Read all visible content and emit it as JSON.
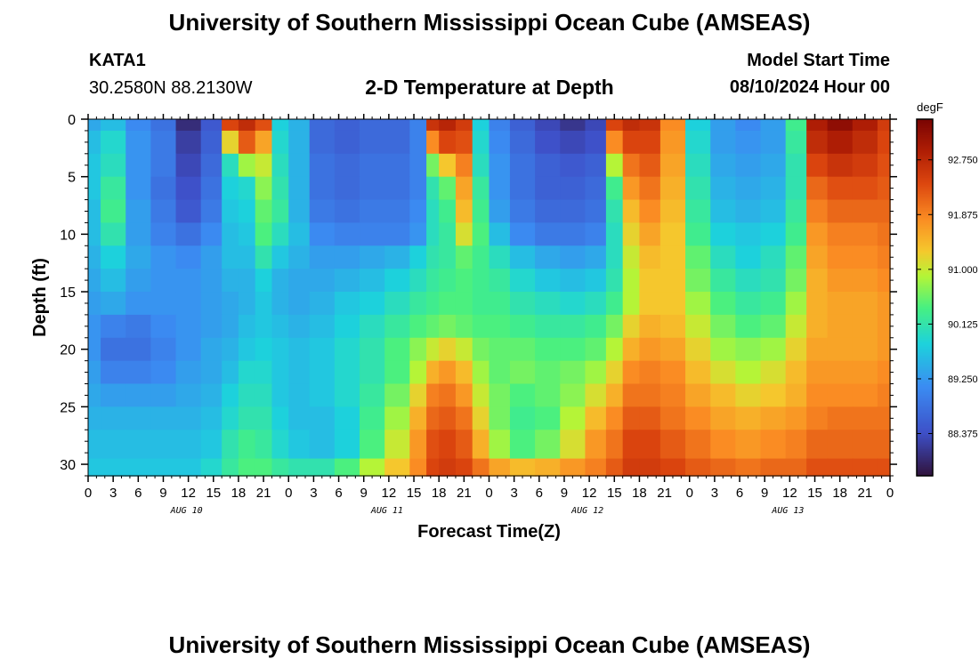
{
  "page": {
    "title": "University of Southern Mississippi Ocean Cube (AMSEAS)",
    "title_repeat": "University of Southern Mississippi Ocean Cube (AMSEAS)",
    "station": "KATA1",
    "coords": "30.2580N  88.2130W",
    "subtitle": "2-D Temperature at Depth",
    "model_start_label": "Model Start Time",
    "model_start_value": "08/10/2024 Hour 00"
  },
  "chart_data": {
    "type": "heatmap",
    "xlabel": "Forecast Time(Z)",
    "ylabel": "Depth (ft)",
    "x_hours_range": [
      0,
      96
    ],
    "x_tick_step_hours": 3,
    "x_tick_labels": [
      "0",
      "3",
      "6",
      "9",
      "12",
      "15",
      "18",
      "21",
      "0",
      "3",
      "6",
      "9",
      "12",
      "15",
      "18",
      "21",
      "0",
      "3",
      "6",
      "9",
      "12",
      "15",
      "18",
      "21",
      "0",
      "3",
      "6",
      "9",
      "12",
      "15",
      "18",
      "21",
      "0"
    ],
    "day_labels": [
      "AUG 10",
      "AUG 11",
      "AUG 12",
      "AUG 13"
    ],
    "y_range": [
      0,
      31
    ],
    "y_ticks": [
      0,
      5,
      10,
      15,
      20,
      25,
      30
    ],
    "y_reversed": true,
    "colorbar": {
      "unit": "degF",
      "range": [
        87.7,
        93.4
      ],
      "ticks": [
        "92.750",
        "91.875",
        "91.000",
        "90.125",
        "89.250",
        "88.375"
      ],
      "tick_values": [
        92.75,
        91.875,
        91.0,
        90.125,
        89.25,
        88.375
      ]
    },
    "depths": [
      0,
      2,
      4,
      6,
      8,
      10,
      12,
      14,
      16,
      18,
      20,
      22,
      24,
      26,
      28,
      31
    ],
    "time_hours": [
      0,
      3,
      6,
      9,
      12,
      15,
      17,
      19,
      21,
      23,
      25,
      28,
      31,
      34,
      37,
      40,
      41,
      43,
      45,
      47,
      49,
      52,
      55,
      58,
      61,
      63,
      65,
      67,
      70,
      73,
      76,
      79,
      82,
      85,
      87,
      90,
      93,
      96
    ],
    "temperature_degF": [
      [
        89.4,
        89.6,
        89.1,
        88.8,
        88.0,
        88.5,
        92.4,
        92.7,
        92.3,
        89.8,
        89.5,
        88.7,
        88.6,
        88.7,
        88.7,
        89.0,
        92.6,
        92.8,
        92.5,
        89.8,
        89.0,
        88.6,
        88.3,
        88.1,
        88.3,
        92.4,
        92.7,
        92.6,
        91.8,
        89.8,
        89.3,
        89.1,
        89.3,
        90.3,
        92.9,
        93.2,
        92.9,
        92.5
      ],
      [
        89.6,
        89.9,
        89.2,
        88.9,
        88.2,
        88.6,
        91.2,
        92.2,
        91.6,
        89.9,
        89.5,
        88.7,
        88.6,
        88.7,
        88.7,
        89.0,
        91.8,
        92.4,
        92.3,
        89.9,
        89.1,
        88.7,
        88.4,
        88.3,
        88.4,
        91.8,
        92.4,
        92.4,
        91.7,
        89.9,
        89.3,
        89.2,
        89.3,
        90.2,
        92.7,
        92.9,
        92.7,
        92.4
      ],
      [
        89.7,
        90.0,
        89.2,
        88.9,
        88.3,
        88.7,
        90.0,
        90.8,
        91.0,
        90.0,
        89.5,
        88.8,
        88.7,
        88.8,
        88.8,
        89.0,
        90.6,
        91.3,
        91.9,
        90.0,
        89.2,
        88.8,
        88.6,
        88.5,
        88.6,
        90.9,
        92.0,
        92.2,
        91.6,
        90.0,
        89.4,
        89.3,
        89.4,
        90.1,
        92.4,
        92.6,
        92.5,
        92.3
      ],
      [
        89.7,
        90.2,
        89.2,
        88.8,
        88.4,
        88.8,
        89.8,
        89.9,
        90.7,
        90.1,
        89.5,
        88.8,
        88.7,
        88.8,
        88.8,
        89.0,
        90.1,
        90.5,
        91.6,
        90.2,
        89.2,
        88.8,
        88.6,
        88.6,
        88.7,
        90.3,
        91.7,
        92.0,
        91.5,
        90.1,
        89.5,
        89.4,
        89.5,
        90.1,
        92.1,
        92.3,
        92.3,
        92.2
      ],
      [
        89.6,
        90.3,
        89.3,
        88.9,
        88.5,
        88.9,
        89.7,
        89.8,
        90.5,
        90.2,
        89.5,
        88.9,
        88.8,
        88.9,
        88.9,
        89.1,
        90.0,
        90.3,
        91.4,
        90.3,
        89.3,
        88.9,
        88.7,
        88.7,
        88.8,
        90.1,
        91.4,
        91.8,
        91.4,
        90.2,
        89.6,
        89.5,
        89.6,
        90.2,
        91.9,
        92.1,
        92.1,
        92.1
      ],
      [
        89.6,
        90.1,
        89.3,
        89.0,
        88.8,
        89.1,
        89.6,
        89.7,
        90.4,
        90.0,
        89.6,
        89.1,
        89.0,
        89.0,
        89.0,
        89.2,
        90.0,
        90.2,
        91.1,
        90.4,
        89.6,
        89.1,
        88.9,
        88.9,
        89.0,
        90.0,
        91.2,
        91.6,
        91.3,
        90.3,
        89.8,
        89.7,
        89.8,
        90.3,
        91.7,
        91.9,
        91.9,
        92.0
      ],
      [
        89.5,
        89.8,
        89.4,
        89.2,
        89.1,
        89.3,
        89.6,
        89.6,
        90.1,
        89.7,
        89.5,
        89.3,
        89.3,
        89.4,
        89.5,
        89.8,
        90.1,
        90.2,
        90.5,
        90.3,
        90.0,
        89.6,
        89.4,
        89.3,
        89.4,
        90.0,
        91.0,
        91.4,
        91.3,
        90.5,
        90.0,
        89.8,
        90.0,
        90.5,
        91.6,
        91.8,
        91.8,
        91.9
      ],
      [
        89.4,
        89.6,
        89.3,
        89.2,
        89.2,
        89.3,
        89.5,
        89.5,
        89.8,
        89.5,
        89.4,
        89.4,
        89.5,
        89.6,
        89.8,
        90.0,
        90.2,
        90.3,
        90.4,
        90.3,
        90.2,
        89.9,
        89.7,
        89.6,
        89.7,
        90.1,
        90.9,
        91.3,
        91.3,
        90.6,
        90.2,
        90.0,
        90.1,
        90.6,
        91.5,
        91.7,
        91.7,
        91.8
      ],
      [
        89.3,
        89.4,
        89.2,
        89.2,
        89.2,
        89.3,
        89.4,
        89.5,
        89.7,
        89.5,
        89.4,
        89.5,
        89.7,
        89.8,
        90.0,
        90.2,
        90.3,
        90.4,
        90.4,
        90.3,
        90.3,
        90.1,
        90.0,
        89.9,
        90.0,
        90.3,
        90.9,
        91.3,
        91.3,
        90.8,
        90.4,
        90.2,
        90.3,
        90.8,
        91.5,
        91.6,
        91.6,
        91.7
      ],
      [
        89.2,
        89.0,
        88.9,
        89.1,
        89.2,
        89.3,
        89.4,
        89.6,
        89.7,
        89.6,
        89.5,
        89.6,
        89.8,
        90.0,
        90.2,
        90.4,
        90.5,
        90.6,
        90.5,
        90.4,
        90.4,
        90.3,
        90.2,
        90.2,
        90.3,
        90.6,
        91.2,
        91.5,
        91.4,
        91.0,
        90.6,
        90.4,
        90.5,
        91.0,
        91.5,
        91.6,
        91.6,
        91.7
      ],
      [
        89.2,
        88.8,
        88.8,
        89.0,
        89.2,
        89.4,
        89.5,
        89.7,
        89.8,
        89.7,
        89.6,
        89.7,
        89.9,
        90.1,
        90.4,
        90.7,
        91.0,
        91.2,
        91.0,
        90.6,
        90.5,
        90.5,
        90.4,
        90.4,
        90.5,
        90.9,
        91.5,
        91.7,
        91.6,
        91.2,
        90.8,
        90.7,
        90.8,
        91.2,
        91.6,
        91.6,
        91.6,
        91.7
      ],
      [
        89.3,
        89.0,
        89.0,
        89.1,
        89.3,
        89.4,
        89.6,
        89.9,
        89.9,
        89.7,
        89.6,
        89.7,
        89.9,
        90.1,
        90.4,
        90.9,
        91.5,
        91.7,
        91.4,
        90.8,
        90.5,
        90.6,
        90.5,
        90.6,
        90.8,
        91.2,
        91.8,
        91.9,
        91.8,
        91.4,
        91.1,
        90.9,
        91.1,
        91.4,
        91.7,
        91.7,
        91.7,
        91.8
      ],
      [
        89.4,
        89.3,
        89.3,
        89.3,
        89.4,
        89.5,
        89.8,
        90.0,
        90.0,
        89.7,
        89.6,
        89.7,
        89.9,
        90.2,
        90.6,
        91.2,
        91.9,
        92.0,
        91.7,
        91.0,
        90.6,
        90.4,
        90.5,
        90.7,
        91.1,
        91.5,
        92.0,
        92.0,
        91.9,
        91.6,
        91.4,
        91.2,
        91.3,
        91.5,
        91.8,
        91.8,
        91.8,
        91.9
      ],
      [
        89.5,
        89.5,
        89.5,
        89.5,
        89.5,
        89.6,
        89.9,
        90.1,
        90.1,
        89.8,
        89.6,
        89.6,
        89.8,
        90.3,
        90.8,
        91.5,
        92.1,
        92.2,
        92.0,
        91.2,
        90.6,
        90.3,
        90.4,
        90.9,
        91.4,
        91.8,
        92.2,
        92.2,
        92.0,
        91.8,
        91.6,
        91.5,
        91.6,
        91.7,
        91.9,
        92.0,
        92.0,
        92.0
      ],
      [
        89.6,
        89.6,
        89.6,
        89.6,
        89.6,
        89.7,
        90.1,
        90.3,
        90.2,
        89.9,
        89.7,
        89.6,
        89.8,
        90.4,
        91.0,
        91.7,
        92.3,
        92.4,
        92.2,
        91.5,
        90.8,
        90.4,
        90.6,
        91.1,
        91.7,
        92.0,
        92.4,
        92.4,
        92.2,
        92.0,
        91.8,
        91.7,
        91.8,
        91.9,
        92.1,
        92.1,
        92.1,
        92.1
      ],
      [
        89.7,
        89.7,
        89.7,
        89.7,
        89.7,
        89.9,
        90.2,
        90.4,
        90.4,
        90.2,
        90.1,
        90.1,
        90.4,
        90.9,
        91.3,
        91.8,
        92.4,
        92.5,
        92.4,
        92.0,
        91.6,
        91.4,
        91.5,
        91.7,
        91.9,
        92.2,
        92.5,
        92.5,
        92.4,
        92.2,
        92.1,
        92.0,
        92.1,
        92.1,
        92.3,
        92.3,
        92.3,
        92.3
      ]
    ]
  }
}
